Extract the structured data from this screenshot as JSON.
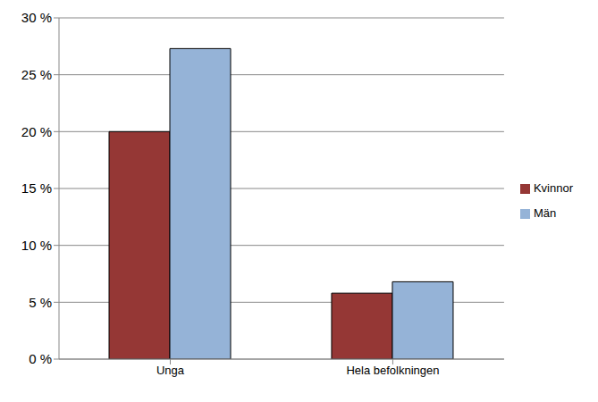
{
  "chart_data": {
    "type": "bar",
    "categories": [
      "Unga",
      "Hela befolkningen"
    ],
    "series": [
      {
        "name": "Kvinnor",
        "color": "#953735",
        "values": [
          20,
          5.8
        ]
      },
      {
        "name": "Män",
        "color": "#95b3d7",
        "values": [
          27.3,
          6.8
        ]
      }
    ],
    "ylim": [
      0,
      30
    ],
    "yticks": [
      {
        "value": 0,
        "label": "0 %"
      },
      {
        "value": 5,
        "label": "5 %"
      },
      {
        "value": 10,
        "label": "10 %"
      },
      {
        "value": 15,
        "label": "15 %"
      },
      {
        "value": 20,
        "label": "20 %"
      },
      {
        "value": 25,
        "label": "25 %"
      },
      {
        "value": 30,
        "label": "30 %"
      }
    ],
    "grid": true,
    "legend": "right"
  }
}
